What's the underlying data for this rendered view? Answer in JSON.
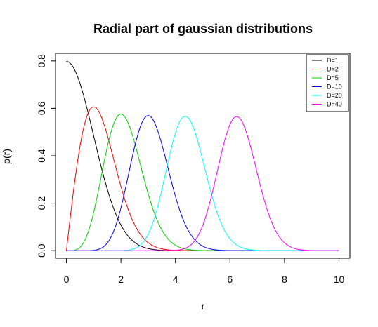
{
  "chart_data": {
    "type": "line",
    "title": "Radial part of gaussian distributions",
    "xlabel": "r",
    "ylabel": "ρ(r)",
    "xlim": [
      -0.4,
      10.4
    ],
    "ylim": [
      -0.032,
      0.832
    ],
    "xticks": [
      0,
      2,
      4,
      6,
      8,
      10
    ],
    "xtick_labels": [
      "0",
      "2",
      "4",
      "6",
      "8",
      "10"
    ],
    "yticks": [
      0.0,
      0.2,
      0.4,
      0.6,
      0.8
    ],
    "ytick_labels": [
      "0.0",
      "0.2",
      "0.4",
      "0.6",
      "0.8"
    ],
    "grid": false,
    "legend_position": "top-right",
    "function": "chi-distribution density with D degrees of freedom",
    "x_range": [
      0,
      10
    ],
    "series": [
      {
        "name": "D=1",
        "D": 1,
        "color": "#000000"
      },
      {
        "name": "D=2",
        "D": 2,
        "color": "#ff0000"
      },
      {
        "name": "D=5",
        "D": 5,
        "color": "#00cd00"
      },
      {
        "name": "D=10",
        "D": 10,
        "color": "#0000ff"
      },
      {
        "name": "D=20",
        "D": 20,
        "color": "#00ffff"
      },
      {
        "name": "D=40",
        "D": 40,
        "color": "#ff00ff"
      }
    ]
  }
}
